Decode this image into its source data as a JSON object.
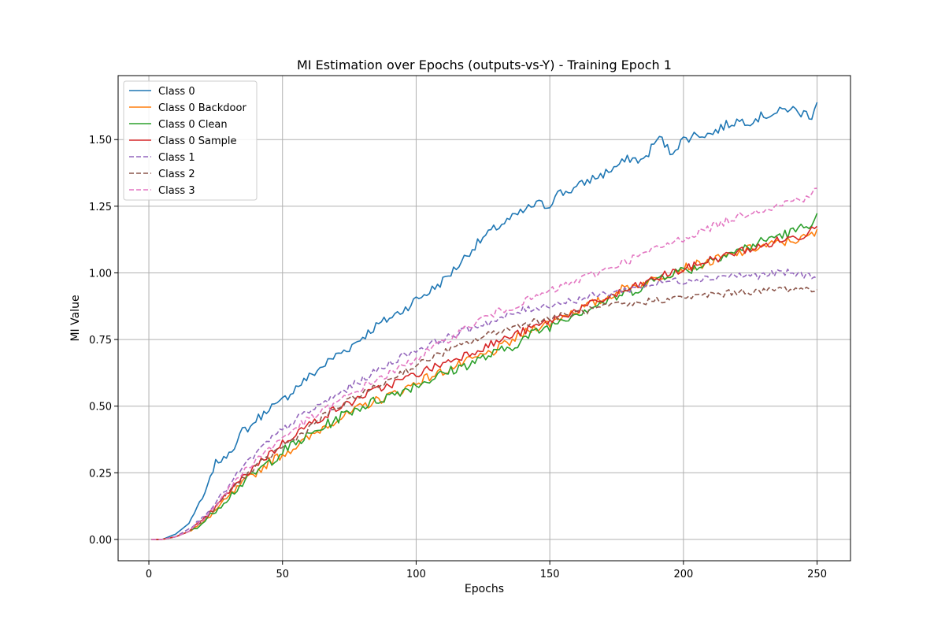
{
  "chart_data": {
    "type": "line",
    "title": "MI Estimation over Epochs (outputs-vs-Y) - Training Epoch 1",
    "xlabel": "Epochs",
    "ylabel": "MI Value",
    "xlim": [
      -11.5,
      262.5
    ],
    "ylim": [
      -0.08,
      1.74
    ],
    "xticks": [
      0,
      50,
      100,
      150,
      200,
      250
    ],
    "yticks": [
      0.0,
      0.25,
      0.5,
      0.75,
      1.0,
      1.25,
      1.5
    ],
    "xtick_labels": [
      "0",
      "50",
      "100",
      "150",
      "200",
      "250"
    ],
    "ytick_labels": [
      "0.00",
      "0.25",
      "0.50",
      "0.75",
      "1.00",
      "1.25",
      "1.50"
    ],
    "grid": true,
    "legend_position": "top-left",
    "x_start": 1,
    "x_end": 250,
    "series": [
      {
        "name": "Class 0",
        "color": "#1f77b4",
        "dash": "solid",
        "x": [
          1,
          5,
          10,
          15,
          18,
          20,
          22,
          25,
          28,
          30,
          33,
          35,
          38,
          40,
          43,
          45,
          48,
          50,
          55,
          60,
          65,
          70,
          75,
          80,
          85,
          90,
          95,
          100,
          105,
          110,
          115,
          120,
          125,
          130,
          135,
          140,
          145,
          150,
          152,
          155,
          160,
          165,
          170,
          175,
          180,
          185,
          190,
          192,
          195,
          200,
          205,
          210,
          215,
          220,
          225,
          230,
          235,
          240,
          243,
          245,
          248,
          250
        ],
        "y": [
          0.0,
          0.0,
          0.02,
          0.06,
          0.12,
          0.15,
          0.2,
          0.29,
          0.3,
          0.33,
          0.36,
          0.41,
          0.42,
          0.45,
          0.47,
          0.5,
          0.5,
          0.52,
          0.57,
          0.61,
          0.65,
          0.69,
          0.72,
          0.76,
          0.8,
          0.83,
          0.86,
          0.9,
          0.93,
          0.97,
          1.02,
          1.08,
          1.13,
          1.17,
          1.2,
          1.23,
          1.26,
          1.25,
          1.3,
          1.3,
          1.32,
          1.35,
          1.37,
          1.4,
          1.43,
          1.42,
          1.5,
          1.5,
          1.45,
          1.5,
          1.52,
          1.52,
          1.55,
          1.57,
          1.57,
          1.59,
          1.6,
          1.62,
          1.6,
          1.6,
          1.59,
          1.65
        ]
      },
      {
        "name": "Class 0 Backdoor",
        "color": "#ff7f0e",
        "dash": "solid",
        "x": [
          1,
          5,
          10,
          15,
          20,
          25,
          30,
          35,
          40,
          45,
          50,
          55,
          60,
          65,
          70,
          75,
          80,
          85,
          90,
          95,
          100,
          105,
          110,
          115,
          120,
          125,
          130,
          135,
          140,
          145,
          150,
          155,
          160,
          165,
          170,
          175,
          180,
          185,
          190,
          195,
          200,
          205,
          210,
          215,
          220,
          225,
          230,
          235,
          240,
          245,
          250
        ],
        "y": [
          0.0,
          0.0,
          0.01,
          0.03,
          0.06,
          0.11,
          0.16,
          0.21,
          0.25,
          0.29,
          0.32,
          0.35,
          0.38,
          0.42,
          0.45,
          0.47,
          0.5,
          0.52,
          0.54,
          0.56,
          0.59,
          0.61,
          0.63,
          0.65,
          0.67,
          0.69,
          0.71,
          0.74,
          0.77,
          0.8,
          0.81,
          0.84,
          0.86,
          0.88,
          0.9,
          0.93,
          0.95,
          0.96,
          0.98,
          1.0,
          1.02,
          1.03,
          1.04,
          1.06,
          1.07,
          1.09,
          1.1,
          1.11,
          1.12,
          1.13,
          1.15
        ]
      },
      {
        "name": "Class 0 Clean",
        "color": "#2ca02c",
        "dash": "solid",
        "x": [
          1,
          5,
          10,
          15,
          20,
          25,
          30,
          35,
          40,
          45,
          50,
          55,
          60,
          65,
          70,
          75,
          80,
          85,
          90,
          95,
          100,
          105,
          110,
          115,
          120,
          125,
          130,
          135,
          140,
          145,
          150,
          155,
          160,
          165,
          170,
          175,
          180,
          185,
          190,
          195,
          200,
          205,
          210,
          215,
          220,
          225,
          230,
          235,
          240,
          245,
          250
        ],
        "y": [
          0.0,
          0.0,
          0.01,
          0.03,
          0.06,
          0.11,
          0.16,
          0.21,
          0.25,
          0.29,
          0.33,
          0.36,
          0.39,
          0.42,
          0.45,
          0.48,
          0.5,
          0.52,
          0.54,
          0.56,
          0.58,
          0.6,
          0.62,
          0.64,
          0.66,
          0.68,
          0.7,
          0.72,
          0.75,
          0.78,
          0.8,
          0.83,
          0.85,
          0.87,
          0.89,
          0.91,
          0.93,
          0.95,
          0.98,
          1.0,
          1.01,
          1.02,
          1.05,
          1.07,
          1.08,
          1.1,
          1.12,
          1.14,
          1.15,
          1.17,
          1.21
        ]
      },
      {
        "name": "Class 0 Sample",
        "color": "#d62728",
        "dash": "solid",
        "x": [
          1,
          5,
          10,
          15,
          20,
          25,
          30,
          35,
          40,
          45,
          50,
          55,
          60,
          65,
          70,
          75,
          80,
          85,
          90,
          95,
          100,
          105,
          110,
          115,
          120,
          125,
          130,
          135,
          140,
          145,
          150,
          155,
          160,
          165,
          170,
          175,
          180,
          185,
          190,
          195,
          200,
          205,
          210,
          215,
          220,
          225,
          230,
          235,
          240,
          245,
          250
        ],
        "y": [
          0.0,
          0.0,
          0.01,
          0.03,
          0.07,
          0.12,
          0.18,
          0.23,
          0.28,
          0.32,
          0.36,
          0.4,
          0.43,
          0.46,
          0.49,
          0.51,
          0.54,
          0.56,
          0.58,
          0.6,
          0.62,
          0.64,
          0.66,
          0.68,
          0.7,
          0.72,
          0.74,
          0.76,
          0.78,
          0.8,
          0.82,
          0.84,
          0.86,
          0.88,
          0.9,
          0.92,
          0.94,
          0.96,
          0.98,
          1.0,
          1.01,
          1.03,
          1.05,
          1.06,
          1.08,
          1.09,
          1.1,
          1.12,
          1.13,
          1.14,
          1.19
        ]
      },
      {
        "name": "Class 1",
        "color": "#9467bd",
        "dash": "dashed",
        "x": [
          1,
          5,
          10,
          15,
          20,
          25,
          30,
          35,
          40,
          45,
          50,
          55,
          60,
          65,
          70,
          75,
          80,
          85,
          90,
          95,
          100,
          105,
          110,
          115,
          120,
          125,
          130,
          135,
          140,
          145,
          150,
          155,
          160,
          165,
          170,
          175,
          180,
          185,
          190,
          195,
          200,
          205,
          210,
          215,
          220,
          225,
          230,
          235,
          240,
          245,
          250
        ],
        "y": [
          0.0,
          0.0,
          0.01,
          0.04,
          0.08,
          0.14,
          0.2,
          0.27,
          0.32,
          0.37,
          0.41,
          0.45,
          0.48,
          0.51,
          0.54,
          0.57,
          0.6,
          0.63,
          0.66,
          0.69,
          0.71,
          0.73,
          0.75,
          0.77,
          0.79,
          0.81,
          0.82,
          0.84,
          0.86,
          0.87,
          0.88,
          0.89,
          0.9,
          0.91,
          0.92,
          0.93,
          0.94,
          0.95,
          0.96,
          0.97,
          0.97,
          0.98,
          0.98,
          0.99,
          0.99,
          0.99,
          0.99,
          1.0,
          1.0,
          0.99,
          0.99
        ]
      },
      {
        "name": "Class 2",
        "color": "#8c564b",
        "dash": "dashed",
        "x": [
          1,
          5,
          10,
          15,
          20,
          25,
          30,
          35,
          40,
          45,
          50,
          55,
          60,
          65,
          70,
          75,
          80,
          85,
          90,
          95,
          100,
          105,
          110,
          115,
          120,
          125,
          130,
          135,
          140,
          145,
          150,
          155,
          160,
          165,
          170,
          175,
          180,
          185,
          190,
          195,
          200,
          205,
          210,
          215,
          220,
          225,
          230,
          235,
          240,
          245,
          250
        ],
        "y": [
          0.0,
          0.0,
          0.01,
          0.03,
          0.07,
          0.12,
          0.18,
          0.23,
          0.27,
          0.31,
          0.35,
          0.38,
          0.42,
          0.46,
          0.49,
          0.52,
          0.55,
          0.57,
          0.6,
          0.63,
          0.65,
          0.68,
          0.7,
          0.72,
          0.74,
          0.76,
          0.78,
          0.79,
          0.81,
          0.82,
          0.83,
          0.84,
          0.85,
          0.86,
          0.87,
          0.88,
          0.88,
          0.89,
          0.9,
          0.9,
          0.91,
          0.91,
          0.92,
          0.92,
          0.93,
          0.93,
          0.93,
          0.94,
          0.94,
          0.94,
          0.94
        ]
      },
      {
        "name": "Class 3",
        "color": "#e377c2",
        "dash": "dashed",
        "x": [
          1,
          5,
          10,
          15,
          20,
          25,
          30,
          35,
          40,
          45,
          50,
          55,
          60,
          65,
          70,
          75,
          80,
          85,
          90,
          95,
          100,
          105,
          110,
          115,
          120,
          125,
          130,
          135,
          140,
          145,
          150,
          155,
          160,
          165,
          170,
          175,
          180,
          185,
          190,
          195,
          200,
          205,
          210,
          215,
          220,
          225,
          230,
          235,
          240,
          245,
          250
        ],
        "y": [
          0.0,
          0.0,
          0.01,
          0.03,
          0.07,
          0.13,
          0.19,
          0.25,
          0.3,
          0.34,
          0.38,
          0.42,
          0.45,
          0.48,
          0.51,
          0.54,
          0.57,
          0.6,
          0.62,
          0.65,
          0.68,
          0.71,
          0.74,
          0.77,
          0.8,
          0.83,
          0.85,
          0.87,
          0.89,
          0.91,
          0.93,
          0.95,
          0.97,
          0.99,
          1.01,
          1.03,
          1.05,
          1.07,
          1.09,
          1.11,
          1.13,
          1.15,
          1.17,
          1.19,
          1.21,
          1.23,
          1.24,
          1.25,
          1.27,
          1.28,
          1.31
        ]
      }
    ]
  }
}
